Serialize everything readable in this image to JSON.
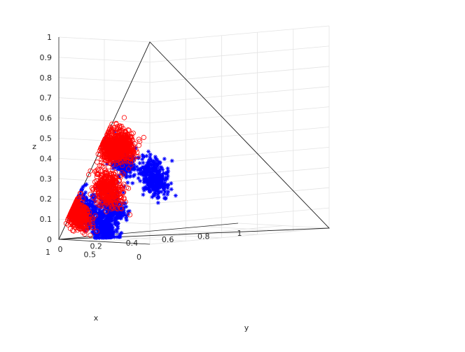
{
  "chart_data": {
    "type": "scatter",
    "projection": "3d",
    "grid": true,
    "xlabel": "x",
    "ylabel": "y",
    "zlabel": "z",
    "xlim": [
      0,
      1
    ],
    "ylim": [
      0,
      1
    ],
    "zlim": [
      0,
      1
    ],
    "x_ticks": [
      "0",
      "0.5",
      "1"
    ],
    "y_ticks": [
      "0",
      "0.2",
      "0.4",
      "0.6",
      "0.8",
      "1"
    ],
    "z_ticks": [
      "0",
      "0.1",
      "0.2",
      "0.3",
      "0.4",
      "0.5",
      "0.6",
      "0.7",
      "0.8",
      "0.9",
      "1"
    ],
    "simplex_vertices": [
      [
        1,
        0,
        0
      ],
      [
        0,
        1,
        0
      ],
      [
        0,
        0,
        1
      ]
    ],
    "series": [
      {
        "marker": "asterisk",
        "color": "#0000ff",
        "clusters": [
          {
            "center": [
              0.45,
              0.25,
              0.3
            ],
            "spread": 0.035,
            "count": 380
          },
          {
            "center": [
              0.5,
              0.1,
              0.25
            ],
            "spread": 0.03,
            "count": 320
          },
          {
            "center": [
              0.8,
              0.05,
              0.15
            ],
            "spread": 0.035,
            "count": 260
          },
          {
            "center": [
              0.7,
              0.15,
              0.15
            ],
            "spread": 0.03,
            "count": 260
          },
          {
            "center": [
              0.8,
              0.15,
              0.05
            ],
            "spread": 0.03,
            "count": 300
          }
        ]
      },
      {
        "marker": "circle",
        "color": "#ff0000",
        "clusters": [
          {
            "center": [
              0.45,
              0.08,
              0.47
            ],
            "spread": 0.03,
            "count": 380
          },
          {
            "center": [
              0.5,
              0.04,
              0.35
            ],
            "spread": 0.03,
            "count": 320
          },
          {
            "center": [
              0.65,
              0.1,
              0.25
            ],
            "spread": 0.035,
            "count": 420
          },
          {
            "center": [
              0.85,
              0.03,
              0.12
            ],
            "spread": 0.03,
            "count": 380
          }
        ]
      }
    ]
  }
}
